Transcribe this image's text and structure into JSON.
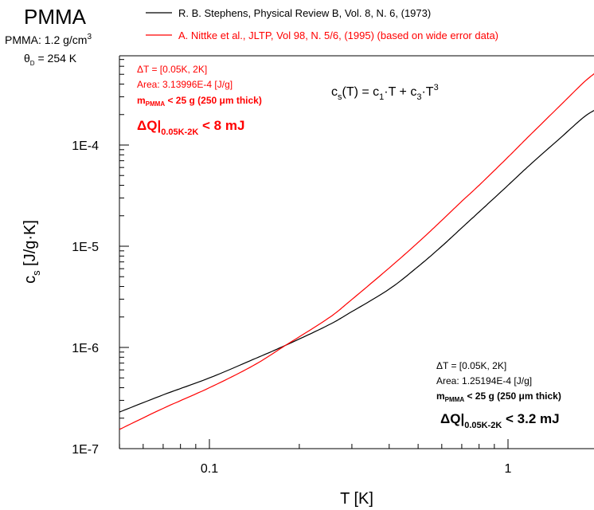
{
  "chart_data": {
    "type": "line",
    "title": "PMMA",
    "info": {
      "density_prefix": "PMMA: 1.2 g/cm",
      "density_exp": "3",
      "theta": "θ",
      "theta_sub": "D",
      "theta_rest": " = 254 K"
    },
    "xlabel": "T [K]",
    "ylabel": {
      "main": "c",
      "sub": "s",
      "rest": " [J/g·K]"
    },
    "x_scale": "log",
    "y_scale": "log",
    "xlim": [
      0.05,
      2
    ],
    "ylim": [
      1e-07,
      0.0005
    ],
    "x_ticks": [
      {
        "value": 0.1,
        "label": "0.1"
      },
      {
        "value": 1,
        "label": "1"
      }
    ],
    "y_ticks": [
      {
        "value": 1e-07,
        "label": "1E-7"
      },
      {
        "value": 1e-06,
        "label": "1E-6"
      },
      {
        "value": 1e-05,
        "label": "1E-5"
      },
      {
        "value": 0.0001,
        "label": "1E-4"
      }
    ],
    "grid": false,
    "legend_position": "top",
    "series": [
      {
        "name": "R. B. Stephens, Physical Review B, Vol. 8, N. 6, (1973)",
        "color": "#000000",
        "points": [
          [
            0.05,
            2.3e-07
          ],
          [
            0.07,
            3.4e-07
          ],
          [
            0.1,
            5e-07
          ],
          [
            0.14,
            7.6e-07
          ],
          [
            0.18,
            1.05e-06
          ],
          [
            0.25,
            1.66e-06
          ],
          [
            0.3,
            2.26e-06
          ],
          [
            0.4,
            3.77e-06
          ],
          [
            0.5,
            6.3e-06
          ],
          [
            0.6,
            1e-05
          ],
          [
            0.7,
            1.52e-05
          ],
          [
            0.8,
            2.18e-05
          ],
          [
            1.0,
            4e-05
          ],
          [
            1.2,
            6.6e-05
          ],
          [
            1.5,
            0.000118
          ],
          [
            1.8,
            0.00019
          ],
          [
            2.0,
            0.00023
          ]
        ]
      },
      {
        "name": "A. Nittke et al., JLTP, Vol 98, N. 5/6, (1995) (based on wide error data)",
        "color": "#ff0000",
        "points": [
          [
            0.05,
            1.55e-07
          ],
          [
            0.07,
            2.5e-07
          ],
          [
            0.1,
            4e-07
          ],
          [
            0.14,
            6.6e-07
          ],
          [
            0.18,
            1.05e-06
          ],
          [
            0.25,
            1.94e-06
          ],
          [
            0.3,
            2.98e-06
          ],
          [
            0.4,
            6.1e-06
          ],
          [
            0.5,
            1.09e-05
          ],
          [
            0.6,
            1.8e-05
          ],
          [
            0.7,
            2.78e-05
          ],
          [
            0.8,
            4e-05
          ],
          [
            1.0,
            7.6e-05
          ],
          [
            1.2,
            0.00013
          ],
          [
            1.5,
            0.000248
          ],
          [
            1.8,
            0.00042
          ],
          [
            2.0,
            0.00054
          ]
        ]
      }
    ],
    "formula": {
      "a": "c",
      "a_sub": "s",
      "b": "(T) = c",
      "b_sub": "1",
      "c": "·T + c",
      "c_sub": "3",
      "d": "·T",
      "d_sup": "3"
    },
    "annotations": {
      "red": {
        "line1": "ΔT = [0.05K, 2K]",
        "line2": "Area: 3.13996E-4 [J/g]",
        "mass_prefix": "m",
        "mass_sub": "PMMA",
        "mass_rest": " < 25 g (250 μm thick)",
        "dq_prefix": "ΔQ|",
        "dq_sub": "0.05K-2K",
        "dq_rest": " < 8 mJ"
      },
      "black": {
        "line1": "ΔT = [0.05K, 2K]",
        "line2": "Area: 1.25194E-4 [J/g]",
        "mass_prefix": "m",
        "mass_sub": "PMMA",
        "mass_rest": " < 25 g (250 μm thick)",
        "dq_prefix": "ΔQ|",
        "dq_sub": "0.05K-2K",
        "dq_rest": " < 3.2 mJ"
      }
    }
  }
}
